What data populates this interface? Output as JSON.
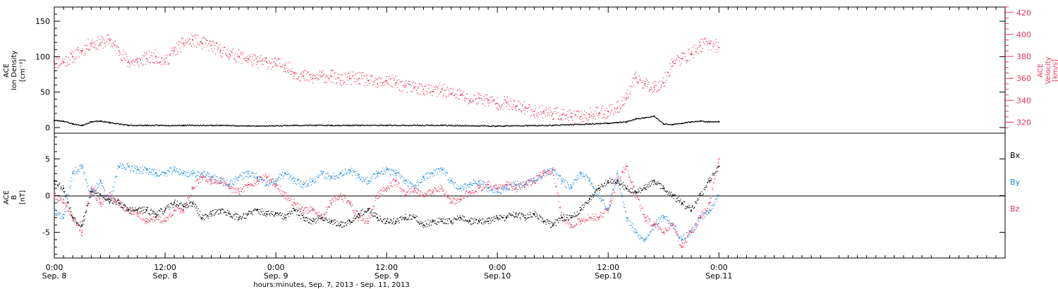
{
  "colors": {
    "density": "#000000",
    "velocity": "#e8345f",
    "bx": "#000000",
    "by": "#1a8de0",
    "bz": "#e8345f",
    "frame": "#000000"
  },
  "xaxis": {
    "title": "hours:minutes, Sep.  7, 2013 - Sep. 11, 2013",
    "range_hours": [
      0,
      103
    ],
    "ticks": [
      {
        "hour": 0,
        "time": "0:00",
        "day": "Sep. 8"
      },
      {
        "hour": 12,
        "time": "12:00",
        "day": "Sep. 8"
      },
      {
        "hour": 24,
        "time": "0:00",
        "day": "Sep. 9"
      },
      {
        "hour": 36,
        "time": "12:00",
        "day": "Sep. 9"
      },
      {
        "hour": 48,
        "time": "0:00",
        "day": "Sep.10"
      },
      {
        "hour": 60,
        "time": "12:00",
        "day": "Sep.10"
      },
      {
        "hour": 72,
        "time": "0:00",
        "day": "Sep.11"
      }
    ]
  },
  "panel1": {
    "left_label": [
      "ACE",
      "Ion Density",
      "[cm⁻³]"
    ],
    "right_label": [
      "ACE",
      "Velocity",
      "[km/s]"
    ],
    "left_ticks": [
      "0",
      "50",
      "100",
      "150"
    ],
    "right_ticks": [
      "320",
      "340",
      "360",
      "380",
      "400",
      "420"
    ]
  },
  "panel2": {
    "left_label": [
      "ACE",
      "B",
      "[nT]"
    ],
    "left_ticks": [
      "-5",
      "0",
      "5"
    ],
    "legend": [
      "Bx",
      "By",
      "Bz"
    ]
  },
  "chart_data": [
    {
      "type": "scatter",
      "title": "",
      "xlabel": "hours:minutes, Sep.  7, 2013 - Sep. 11, 2013",
      "ylabel": "ACE Ion Density [cm^-3]",
      "y2label": "ACE Velocity [km/s]",
      "ylim": [
        -8,
        170
      ],
      "y2lim": [
        310,
        425
      ],
      "grid": false,
      "series": [
        {
          "name": "Ion Density",
          "axis": "left",
          "x": [
            0,
            1,
            2,
            3,
            4,
            5,
            6,
            8,
            10,
            14,
            18,
            22,
            26,
            30,
            36,
            42,
            48,
            54,
            58,
            60,
            61,
            62,
            63,
            64,
            65,
            66,
            67,
            68,
            69,
            70,
            71,
            72
          ],
          "values": [
            10,
            9,
            5,
            3,
            8,
            9,
            7,
            3,
            3,
            3,
            3,
            2,
            3,
            3,
            3,
            3,
            2,
            3,
            5,
            6,
            7,
            8,
            12,
            14,
            16,
            5,
            4,
            6,
            8,
            9,
            8,
            8
          ]
        },
        {
          "name": "Velocity",
          "axis": "right",
          "x": [
            0,
            1,
            2,
            3,
            4,
            5,
            6,
            7,
            8,
            9,
            10,
            11,
            12,
            13,
            14,
            15,
            16,
            17,
            18,
            19,
            20,
            21,
            22,
            23,
            24,
            25,
            26,
            27,
            28,
            29,
            30,
            31,
            32,
            33,
            34,
            35,
            36,
            37,
            38,
            39,
            40,
            41,
            42,
            43,
            44,
            45,
            46,
            47,
            48,
            49,
            50,
            51,
            52,
            53,
            54,
            55,
            56,
            57,
            58,
            59,
            60,
            61,
            62,
            63,
            64,
            65,
            66,
            67,
            68,
            69,
            70,
            71,
            72
          ],
          "values": [
            375,
            375,
            380,
            385,
            392,
            392,
            395,
            385,
            375,
            375,
            378,
            380,
            375,
            385,
            392,
            395,
            392,
            390,
            385,
            382,
            380,
            378,
            375,
            375,
            373,
            372,
            365,
            362,
            360,
            362,
            362,
            358,
            360,
            360,
            358,
            355,
            358,
            356,
            352,
            352,
            350,
            348,
            350,
            346,
            345,
            340,
            342,
            340,
            337,
            338,
            334,
            333,
            330,
            330,
            328,
            327,
            325,
            325,
            327,
            328,
            330,
            333,
            342,
            360,
            355,
            352,
            356,
            375,
            378,
            382,
            390,
            392,
            388
          ]
        }
      ]
    },
    {
      "type": "scatter",
      "title": "",
      "xlabel": "hours:minutes, Sep.  7, 2013 - Sep. 11, 2013",
      "ylabel": "ACE B [nT]",
      "ylim": [
        -8.5,
        8.5
      ],
      "grid": false,
      "series": [
        {
          "name": "Bx",
          "x": [
            0,
            1,
            2,
            3,
            4,
            5,
            6,
            7,
            8,
            9,
            10,
            11,
            12,
            13,
            14,
            15,
            16,
            17,
            18,
            19,
            20,
            21,
            22,
            23,
            24,
            25,
            26,
            27,
            28,
            29,
            30,
            31,
            32,
            33,
            34,
            35,
            36,
            37,
            38,
            39,
            40,
            41,
            42,
            43,
            44,
            45,
            46,
            47,
            48,
            49,
            50,
            51,
            52,
            53,
            54,
            55,
            56,
            57,
            58,
            59,
            60,
            61,
            62,
            63,
            64,
            65,
            66,
            67,
            68,
            69,
            70,
            71,
            72
          ],
          "values": [
            2,
            1,
            -3,
            -4,
            0.5,
            0,
            -0.5,
            -1,
            -2,
            -2,
            -2,
            -2.5,
            -2,
            -1,
            -1.5,
            -1,
            -3,
            -2.5,
            -2,
            -2.5,
            -3,
            -2.5,
            -2,
            -2.5,
            -2.5,
            -3,
            -2,
            -3,
            -3.5,
            -3,
            -3.5,
            -4,
            -3.5,
            -2.5,
            -2,
            -3,
            -3.5,
            -3.5,
            -3,
            -3,
            -4,
            -3.5,
            -3.5,
            -3.5,
            -3,
            -3.5,
            -3.5,
            -3.5,
            -3,
            -3,
            -2.5,
            -3,
            -2.5,
            -3.5,
            -4,
            -3,
            -3,
            -2,
            -0.5,
            1,
            2,
            2,
            1,
            0.5,
            1,
            2,
            1,
            0,
            -1,
            -2,
            0,
            2,
            4
          ]
        },
        {
          "name": "By",
          "x": [
            0,
            1,
            2,
            3,
            4,
            5,
            6,
            7,
            8,
            9,
            10,
            11,
            12,
            13,
            14,
            15,
            16,
            17,
            18,
            19,
            20,
            21,
            22,
            23,
            24,
            25,
            26,
            27,
            28,
            29,
            30,
            31,
            32,
            33,
            34,
            35,
            36,
            37,
            38,
            39,
            40,
            41,
            42,
            43,
            44,
            45,
            46,
            47,
            48,
            49,
            50,
            51,
            52,
            53,
            54,
            55,
            56,
            57,
            58,
            59,
            60,
            61,
            62,
            63,
            64,
            65,
            66,
            67,
            68,
            69,
            70,
            71,
            72
          ],
          "values": [
            -2,
            -3,
            3,
            4,
            0,
            2,
            -1,
            4,
            4,
            3.5,
            3.5,
            3,
            3,
            3.5,
            3,
            3,
            3,
            2.5,
            2,
            1.5,
            2.5,
            3,
            2.5,
            1.5,
            2,
            3,
            2,
            1.5,
            2,
            3,
            2.5,
            3,
            3.5,
            2.5,
            2,
            3,
            3.5,
            3,
            2,
            1,
            2.5,
            3,
            3.5,
            2,
            1,
            1.5,
            2,
            1,
            0.5,
            1,
            1.5,
            1.5,
            2,
            3,
            3.5,
            2,
            1,
            3,
            2,
            0,
            -2,
            3,
            -3,
            -5,
            -6,
            -4,
            -3,
            -4,
            -6,
            -5,
            -3,
            -2,
            0
          ]
        },
        {
          "name": "Bz",
          "x": [
            0,
            1,
            2,
            3,
            4,
            5,
            6,
            7,
            8,
            9,
            10,
            11,
            12,
            13,
            14,
            15,
            16,
            17,
            18,
            19,
            20,
            21,
            22,
            23,
            24,
            25,
            26,
            27,
            28,
            29,
            30,
            31,
            32,
            33,
            34,
            35,
            36,
            37,
            38,
            39,
            40,
            41,
            42,
            43,
            44,
            45,
            46,
            47,
            48,
            49,
            50,
            51,
            52,
            53,
            54,
            55,
            56,
            57,
            58,
            59,
            60,
            61,
            62,
            63,
            64,
            65,
            66,
            67,
            68,
            69,
            70,
            71,
            72
          ],
          "values": [
            0,
            -1,
            -3,
            -5,
            1,
            -1,
            0,
            -1,
            -2,
            -2.5,
            -3.5,
            -3,
            -3.5,
            -2,
            -2,
            1,
            2.5,
            2,
            2,
            1,
            0.5,
            1.5,
            2,
            2.5,
            1.5,
            0,
            -1,
            -2,
            -2,
            -3,
            -1,
            0,
            -1,
            -3,
            -3.5,
            0,
            1,
            2,
            0,
            1,
            0,
            0.5,
            1,
            -1,
            -0.5,
            0.5,
            1,
            1.5,
            1,
            1.5,
            1,
            1.5,
            2,
            3,
            3.5,
            -3,
            -4,
            -3.5,
            -3,
            -3,
            -2,
            2,
            4,
            0,
            -3,
            -4,
            -5,
            -4,
            -7,
            -5,
            -3,
            -1,
            5
          ]
        }
      ]
    }
  ]
}
